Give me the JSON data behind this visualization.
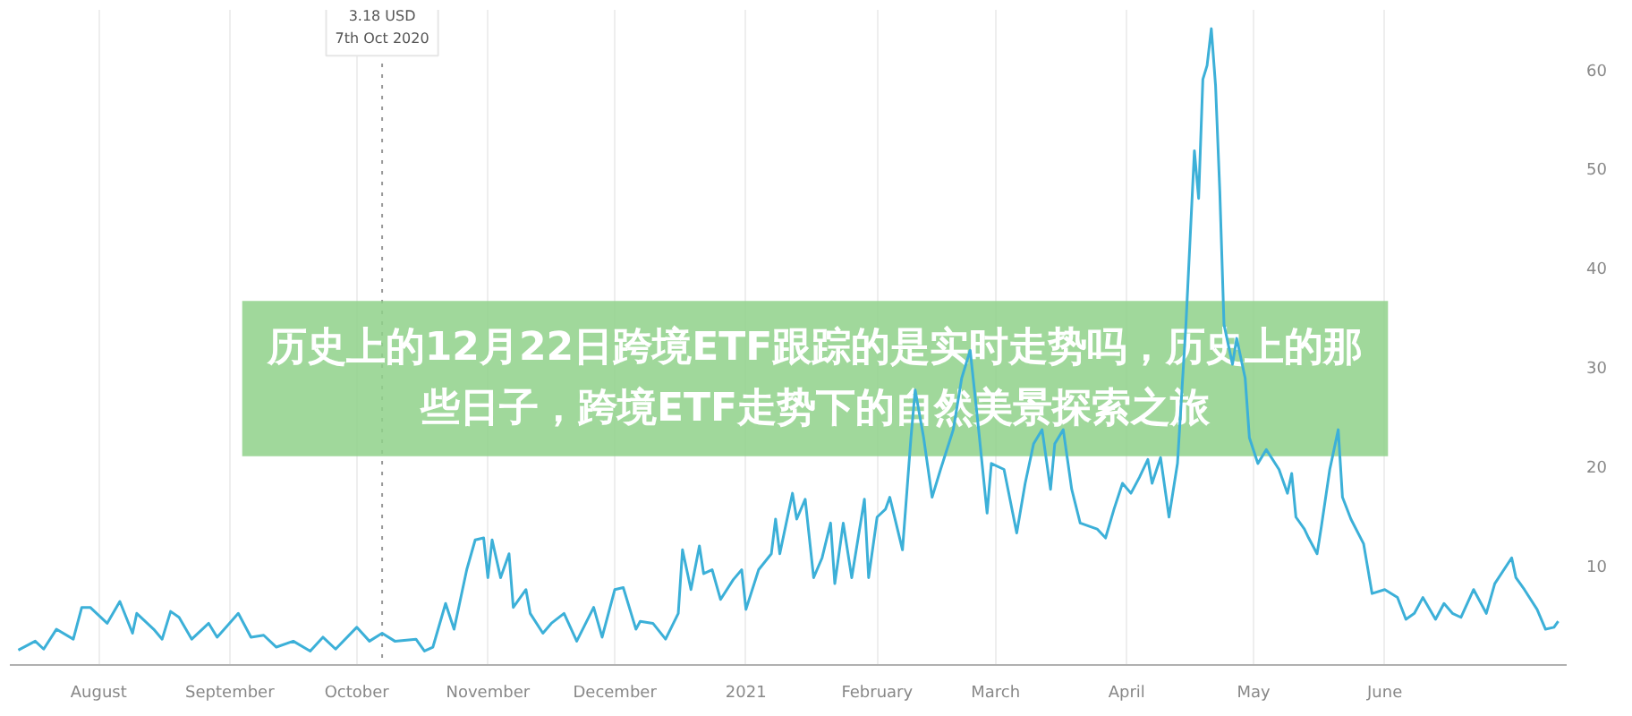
{
  "chart_data": {
    "type": "line",
    "title": "历史上的12月22日跨境ETF跟踪的是实时走势吗，历史上的那些日子，跨境ETF走势下的自然美景探索之旅",
    "xlim": [
      "2020-07-11",
      "2021-07-14"
    ],
    "ylim": [
      0,
      66
    ],
    "xticks": [
      {
        "value": "2020-08-01",
        "label": "August"
      },
      {
        "value": "2020-09-01",
        "label": "September"
      },
      {
        "value": "2020-10-01",
        "label": "October"
      },
      {
        "value": "2020-11-01",
        "label": "November"
      },
      {
        "value": "2020-12-01",
        "label": "December"
      },
      {
        "value": "2021-01-01",
        "label": "2021"
      },
      {
        "value": "2021-02-01",
        "label": "February"
      },
      {
        "value": "2021-03-01",
        "label": "March"
      },
      {
        "value": "2021-04-01",
        "label": "April"
      },
      {
        "value": "2021-05-01",
        "label": "May"
      },
      {
        "value": "2021-06-01",
        "label": "June"
      }
    ],
    "yticks": [
      10,
      20,
      30,
      40,
      50,
      60
    ],
    "grid": "x",
    "marker": "none",
    "line_style": "solid",
    "ref_lines": [
      {
        "axis": "x",
        "value": "2020-10-07",
        "line_style": "dotted",
        "color": "#999999"
      }
    ],
    "annotations": [
      "3.18 USD\n7th Oct 2020"
    ],
    "series": [
      {
        "color": "#3cb0d8",
        "x": [
          "2020-07-13",
          "2020-07-17",
          "2020-07-19",
          "2020-07-22",
          "2020-07-26",
          "2020-07-28",
          "2020-07-30",
          "2020-08-03",
          "2020-08-06",
          "2020-08-09",
          "2020-08-10",
          "2020-08-14",
          "2020-08-16",
          "2020-08-18",
          "2020-08-20",
          "2020-08-23",
          "2020-08-27",
          "2020-08-29",
          "2020-09-03",
          "2020-09-06",
          "2020-09-09",
          "2020-09-12",
          "2020-09-16",
          "2020-09-20",
          "2020-09-23",
          "2020-09-26",
          "2020-10-01",
          "2020-10-04",
          "2020-10-07",
          "2020-10-10",
          "2020-10-15",
          "2020-10-17",
          "2020-10-19",
          "2020-10-22",
          "2020-10-24",
          "2020-10-27",
          "2020-10-29",
          "2020-10-31",
          "2020-11-01",
          "2020-11-02",
          "2020-11-04",
          "2020-11-06",
          "2020-11-07",
          "2020-11-10",
          "2020-11-11",
          "2020-11-14",
          "2020-11-16",
          "2020-11-19",
          "2020-11-22",
          "2020-11-26",
          "2020-11-28",
          "2020-12-01",
          "2020-12-03",
          "2020-12-06",
          "2020-12-07",
          "2020-12-10",
          "2020-12-13",
          "2020-12-16",
          "2020-12-17",
          "2020-12-19",
          "2020-12-21",
          "2020-12-22",
          "2020-12-24",
          "2020-12-26",
          "2020-12-29",
          "2020-12-31",
          "2021-01-01",
          "2021-01-04",
          "2021-01-07",
          "2021-01-08",
          "2021-01-09",
          "2021-01-12",
          "2021-01-13",
          "2021-01-15",
          "2021-01-17",
          "2021-01-19",
          "2021-01-21",
          "2021-01-22",
          "2021-01-24",
          "2021-01-26",
          "2021-01-29",
          "2021-01-30",
          "2021-02-01",
          "2021-02-03",
          "2021-02-04",
          "2021-02-07",
          "2021-02-09",
          "2021-02-10",
          "2021-02-12",
          "2021-02-14",
          "2021-02-16",
          "2021-02-19",
          "2021-02-21",
          "2021-02-23",
          "2021-02-25",
          "2021-02-27",
          "2021-02-28",
          "2021-03-03",
          "2021-03-06",
          "2021-03-08",
          "2021-03-10",
          "2021-03-12",
          "2021-03-14",
          "2021-03-15",
          "2021-03-17",
          "2021-03-19",
          "2021-03-21",
          "2021-03-25",
          "2021-03-27",
          "2021-03-29",
          "2021-03-31",
          "2021-04-02",
          "2021-04-04",
          "2021-04-06",
          "2021-04-07",
          "2021-04-09",
          "2021-04-11",
          "2021-04-13",
          "2021-04-15",
          "2021-04-17",
          "2021-04-18",
          "2021-04-19",
          "2021-04-20",
          "2021-04-21",
          "2021-04-22",
          "2021-04-23",
          "2021-04-24",
          "2021-04-26",
          "2021-04-27",
          "2021-04-29",
          "2021-04-30",
          "2021-05-02",
          "2021-05-04",
          "2021-05-07",
          "2021-05-09",
          "2021-05-10",
          "2021-05-11",
          "2021-05-13",
          "2021-05-14",
          "2021-05-16",
          "2021-05-17",
          "2021-05-19",
          "2021-05-21",
          "2021-05-22",
          "2021-05-24",
          "2021-05-27",
          "2021-05-29",
          "2021-06-01",
          "2021-06-04",
          "2021-06-06",
          "2021-06-08",
          "2021-06-10",
          "2021-06-13",
          "2021-06-15",
          "2021-06-17",
          "2021-06-19",
          "2021-06-22",
          "2021-06-25",
          "2021-06-27",
          "2021-07-01",
          "2021-07-02",
          "2021-07-04",
          "2021-07-07",
          "2021-07-09",
          "2021-07-11",
          "2021-07-12"
        ],
        "values": [
          1.5,
          2.4,
          1.6,
          3.6,
          2.6,
          5.8,
          5.8,
          4.2,
          6.4,
          3.2,
          5.2,
          3.6,
          2.6,
          5.4,
          4.8,
          2.6,
          4.2,
          2.8,
          5.2,
          2.8,
          3.0,
          1.8,
          2.4,
          1.4,
          2.8,
          1.6,
          3.8,
          2.4,
          3.2,
          2.4,
          2.6,
          1.4,
          1.8,
          6.2,
          3.6,
          9.6,
          12.6,
          12.8,
          8.8,
          12.6,
          8.8,
          11.2,
          5.8,
          7.6,
          5.2,
          3.2,
          4.2,
          5.2,
          2.4,
          5.8,
          2.8,
          7.6,
          7.8,
          3.6,
          4.4,
          4.2,
          2.6,
          5.2,
          11.6,
          7.6,
          12.0,
          9.2,
          9.6,
          6.6,
          8.6,
          9.6,
          5.6,
          9.6,
          11.2,
          14.7,
          11.2,
          17.3,
          14.7,
          16.7,
          8.8,
          10.8,
          14.3,
          8.2,
          14.3,
          8.8,
          16.7,
          8.8,
          14.9,
          15.7,
          16.9,
          11.6,
          22.9,
          27.7,
          22.9,
          16.9,
          19.7,
          23.7,
          28.9,
          31.7,
          23.7,
          15.3,
          20.3,
          19.7,
          13.3,
          18.3,
          22.3,
          23.7,
          17.7,
          22.3,
          23.7,
          17.7,
          14.3,
          13.7,
          12.8,
          15.7,
          18.3,
          17.3,
          18.9,
          20.7,
          18.3,
          20.9,
          14.9,
          20.3,
          34.3,
          51.8,
          47.0,
          59.0,
          60.4,
          64.1,
          58.4,
          47.8,
          34.3,
          30.3,
          32.9,
          28.9,
          22.9,
          20.3,
          21.7,
          19.7,
          17.3,
          19.3,
          14.9,
          13.7,
          12.8,
          11.2,
          13.9,
          19.7,
          23.7,
          16.9,
          14.7,
          12.2,
          7.2,
          7.6,
          6.8,
          4.6,
          5.2,
          6.8,
          4.6,
          6.2,
          5.2,
          4.8,
          7.6,
          5.2,
          8.2,
          10.8,
          8.8,
          7.6,
          5.6,
          3.6,
          3.8,
          4.4
        ]
      }
    ]
  }
}
